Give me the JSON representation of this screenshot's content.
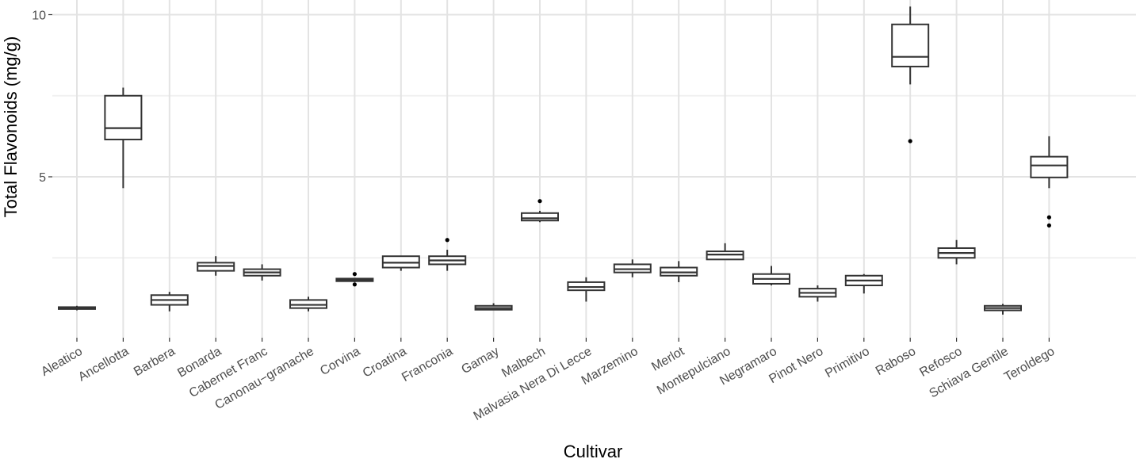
{
  "chart_data": {
    "type": "box",
    "title": "",
    "xlabel": "Cultivar",
    "ylabel": "Total Flavonoids (mg/g)",
    "y_ticks": [
      5,
      10
    ],
    "y_ticks_labels": [
      "5",
      "10"
    ],
    "ylim": [
      0.15,
      10.25
    ],
    "grid": true,
    "background": "#ffffff",
    "grid_major_color": "#e3e3e3",
    "grid_minor_color": "#f1f1f1",
    "box_stroke_color": "#333333",
    "outlier_color": "#000000",
    "categories": [
      "Aleatico",
      "Ancellotta",
      "Barbera",
      "Bonarda",
      "Cabernet Franc",
      "Canonau−granache",
      "Corvina",
      "Croatina",
      "Franconia",
      "Gamay",
      "Malbech",
      "Malvasia Nera Di Lecce",
      "Marzemino",
      "Merlot",
      "Montepulciano",
      "Negramaro",
      "Pinot Nero",
      "Primitivo",
      "Raboso",
      "Refosco",
      "Schiava Gentile",
      "Teroldego"
    ],
    "boxes": [
      {
        "category": "Aleatico",
        "min": 0.88,
        "q1": 0.92,
        "median": 0.95,
        "q3": 0.98,
        "max": 1.02,
        "outliers": []
      },
      {
        "category": "Ancellotta",
        "min": 4.65,
        "q1": 6.15,
        "median": 6.5,
        "q3": 7.5,
        "max": 7.75,
        "outliers": []
      },
      {
        "category": "Barbera",
        "min": 0.85,
        "q1": 1.05,
        "median": 1.2,
        "q3": 1.35,
        "max": 1.45,
        "outliers": []
      },
      {
        "category": "Bonarda",
        "min": 1.95,
        "q1": 2.1,
        "median": 2.25,
        "q3": 2.35,
        "max": 2.55,
        "outliers": []
      },
      {
        "category": "Cabernet Franc",
        "min": 1.8,
        "q1": 1.95,
        "median": 2.05,
        "q3": 2.15,
        "max": 2.3,
        "outliers": []
      },
      {
        "category": "Canonau−granache",
        "min": 0.85,
        "q1": 0.95,
        "median": 1.05,
        "q3": 1.2,
        "max": 1.3,
        "outliers": []
      },
      {
        "category": "Corvina",
        "min": 1.75,
        "q1": 1.78,
        "median": 1.82,
        "q3": 1.86,
        "max": 1.88,
        "outliers": [
          2.0,
          1.68
        ]
      },
      {
        "category": "Croatina",
        "min": 2.1,
        "q1": 2.2,
        "median": 2.35,
        "q3": 2.55,
        "max": 2.55,
        "outliers": []
      },
      {
        "category": "Franconia",
        "min": 2.1,
        "q1": 2.3,
        "median": 2.42,
        "q3": 2.55,
        "max": 2.75,
        "outliers": [
          3.05
        ]
      },
      {
        "category": "Gamay",
        "min": 0.88,
        "q1": 0.9,
        "median": 0.95,
        "q3": 1.02,
        "max": 1.1,
        "outliers": []
      },
      {
        "category": "Malbech",
        "min": 3.6,
        "q1": 3.65,
        "median": 3.72,
        "q3": 3.88,
        "max": 3.95,
        "outliers": [
          4.25
        ]
      },
      {
        "category": "Malvasia Nera Di Lecce",
        "min": 1.15,
        "q1": 1.5,
        "median": 1.6,
        "q3": 1.75,
        "max": 1.9,
        "outliers": []
      },
      {
        "category": "Marzemino",
        "min": 1.9,
        "q1": 2.05,
        "median": 2.15,
        "q3": 2.3,
        "max": 2.45,
        "outliers": []
      },
      {
        "category": "Merlot",
        "min": 1.75,
        "q1": 1.95,
        "median": 2.05,
        "q3": 2.2,
        "max": 2.4,
        "outliers": []
      },
      {
        "category": "Montepulciano",
        "min": 2.45,
        "q1": 2.45,
        "median": 2.6,
        "q3": 2.7,
        "max": 2.95,
        "outliers": []
      },
      {
        "category": "Negramaro",
        "min": 1.65,
        "q1": 1.7,
        "median": 1.85,
        "q3": 2.0,
        "max": 2.25,
        "outliers": []
      },
      {
        "category": "Pinot Nero",
        "min": 1.15,
        "q1": 1.3,
        "median": 1.42,
        "q3": 1.55,
        "max": 1.65,
        "outliers": []
      },
      {
        "category": "Primitivo",
        "min": 1.4,
        "q1": 1.65,
        "median": 1.8,
        "q3": 1.95,
        "max": 2.0,
        "outliers": []
      },
      {
        "category": "Raboso",
        "min": 7.85,
        "q1": 8.4,
        "median": 8.7,
        "q3": 9.7,
        "max": 10.25,
        "outliers": [
          6.1
        ]
      },
      {
        "category": "Refosco",
        "min": 2.3,
        "q1": 2.5,
        "median": 2.65,
        "q3": 2.8,
        "max": 3.05,
        "outliers": []
      },
      {
        "category": "Schiava Gentile",
        "min": 0.75,
        "q1": 0.88,
        "median": 0.95,
        "q3": 1.02,
        "max": 1.08,
        "outliers": []
      },
      {
        "category": "Teroldego",
        "min": 4.65,
        "q1": 4.98,
        "median": 5.35,
        "q3": 5.62,
        "max": 6.25,
        "outliers": [
          3.75,
          3.5
        ]
      }
    ]
  }
}
